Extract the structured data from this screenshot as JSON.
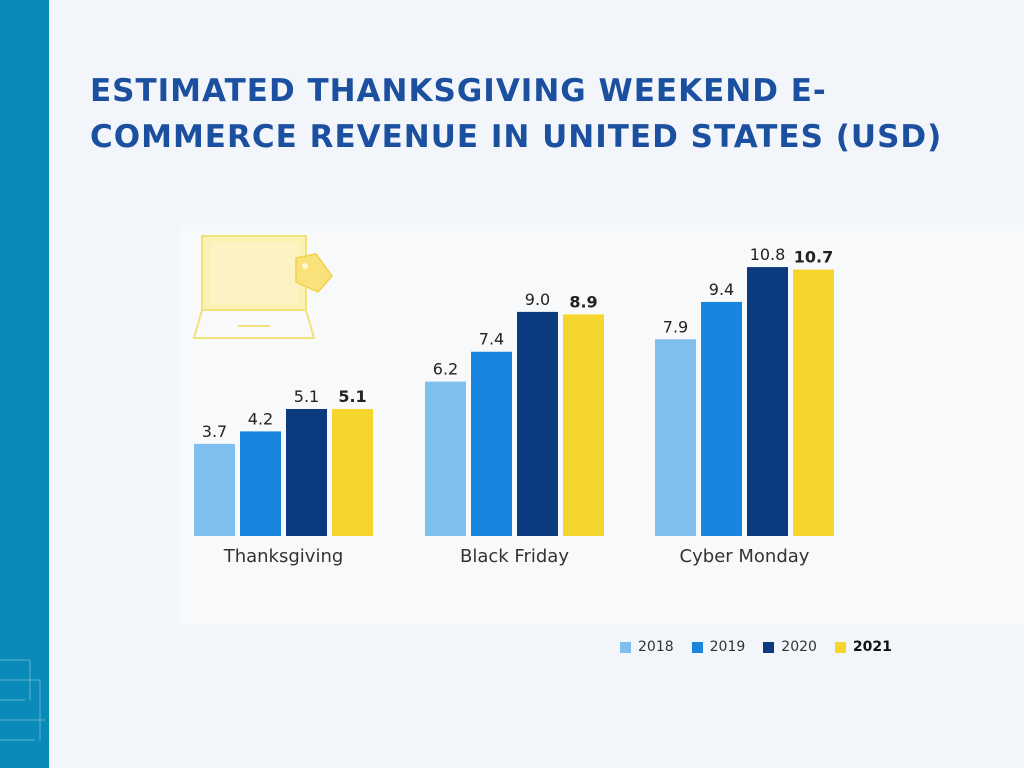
{
  "title": "Estimated Thanksgiving Weekend E-Commerce Revenue in United States (USD)",
  "chart_data": {
    "type": "bar",
    "categories": [
      "Thanksgiving",
      "Black Friday",
      "Cyber Monday"
    ],
    "series": [
      {
        "name": "2018",
        "values": [
          3.7,
          6.2,
          7.9
        ],
        "color": "#7fbfee",
        "bold": false
      },
      {
        "name": "2019",
        "values": [
          4.2,
          7.4,
          9.4
        ],
        "color": "#1886df",
        "bold": false
      },
      {
        "name": "2020",
        "values": [
          5.1,
          9.0,
          10.8
        ],
        "color": "#0c3a7e",
        "bold": false
      },
      {
        "name": "2021",
        "values": [
          5.1,
          8.9,
          10.7
        ],
        "color": "#f6d62e",
        "bold": true
      }
    ],
    "value_labels": [
      [
        "3.7",
        "6.2",
        "7.9"
      ],
      [
        "4.2",
        "7.4",
        "9.4"
      ],
      [
        "5.1",
        "9.0",
        "10.8"
      ],
      [
        "5.1",
        "8.9",
        "10.7"
      ]
    ],
    "ylim": [
      0,
      12
    ],
    "grid": false,
    "legend_position": "bottom-right",
    "xlabel": "",
    "ylabel": ""
  },
  "icons": {
    "band": "decorative-band",
    "laptop": "laptop-icon",
    "tag": "price-tag-icon"
  }
}
